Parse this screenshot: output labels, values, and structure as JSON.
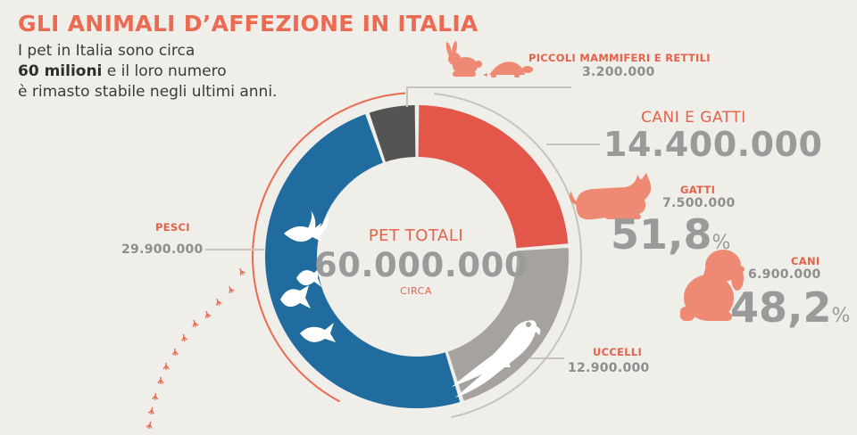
{
  "header": {
    "title": "GLI ANIMALI D’AFFEZIONE IN ITALIA",
    "intro_line1": "I pet in Italia sono circa",
    "intro_bold": "60 milioni",
    "intro_line2_rest": " e il loro numero",
    "intro_line3": "è rimasto stabile negli ultimi anni."
  },
  "center": {
    "label": "PET TOTALI",
    "value": "60.000.000",
    "note": "CIRCA"
  },
  "labels": {
    "piccoli_name": "PICCOLI MAMMIFERI E RETTILI",
    "piccoli_value": "3.200.000",
    "cani_gatti_name": "CANI E GATTI",
    "cani_gatti_value": "14.400.000",
    "gatti_name": "GATTI",
    "gatti_value": "7.500.000",
    "gatti_pct": "51,8",
    "cani_name": "CANI",
    "cani_value": "6.900.000",
    "cani_pct": "48,2",
    "pct_symbol": "%",
    "pesci_name": "PESCI",
    "pesci_value": "29.900.000",
    "uccelli_name": "UCCELLI",
    "uccelli_value": "12.900.000"
  },
  "colors": {
    "cani_gatti": "#e2574a",
    "uccelli": "#a6a29e",
    "pesci": "#216c9e",
    "piccoli": "#545454",
    "accent": "#ec6a52",
    "animal_icon": "#ee8a73"
  },
  "icons": [
    "rabbit-icon",
    "turtle-icon",
    "cat-icon",
    "dog-icon",
    "parrot-icon",
    "fish-icon",
    "bird-footprints-icon"
  ],
  "chart_data": {
    "type": "pie",
    "title": "PET TOTALI",
    "total": 60000000,
    "slices": [
      {
        "name": "CANI E GATTI",
        "value": 14400000
      },
      {
        "name": "UCCELLI",
        "value": 12900000
      },
      {
        "name": "PESCI",
        "value": 29900000
      },
      {
        "name": "PICCOLI MAMMIFERI E RETTILI",
        "value": 3200000
      }
    ],
    "sub_breakdown": {
      "parent": "CANI E GATTI",
      "items": [
        {
          "name": "GATTI",
          "value": 7500000,
          "percent": 51.8
        },
        {
          "name": "CANI",
          "value": 6900000,
          "percent": 48.2
        }
      ]
    }
  }
}
